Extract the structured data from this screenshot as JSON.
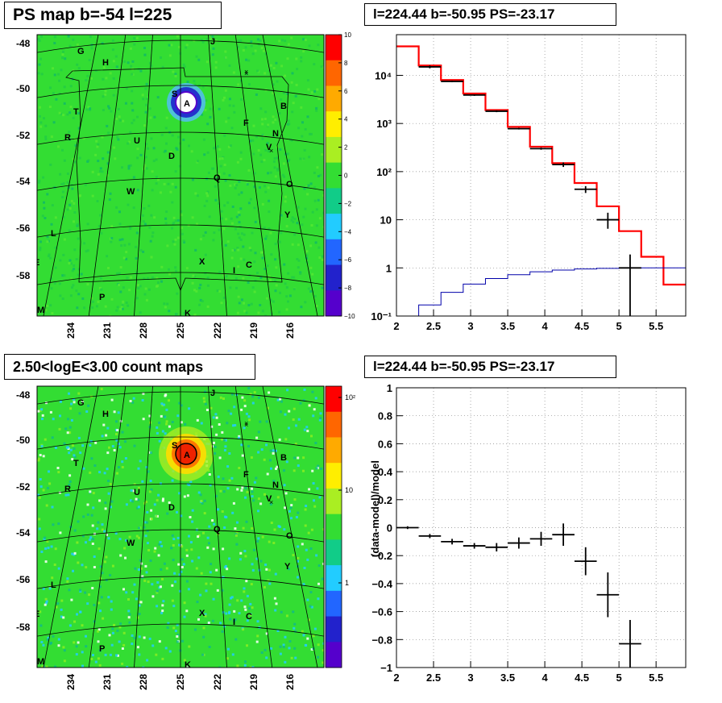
{
  "panels": {
    "top_left_title": "PS map b=-54 l=225",
    "top_right_title": "l=224.44 b=-50.95 PS=-23.17",
    "bottom_left_title": "2.50<logE<3.00 count maps",
    "bottom_right_title": "l=224.44 b=-50.95 PS=-23.17"
  },
  "sky_map": {
    "lat_labels": [
      "-48",
      "-50",
      "-52",
      "-54",
      "-56",
      "-58"
    ],
    "lon_labels": [
      "234",
      "231",
      "228",
      "225",
      "222",
      "219",
      "216"
    ],
    "sources": [
      "G",
      "H",
      "J",
      "S",
      "A",
      "B",
      "T",
      "F",
      "N",
      "R",
      "U",
      "V",
      "D",
      "Q",
      "W",
      "O",
      "Y",
      "L",
      "E",
      "X",
      "I",
      "C",
      "P",
      "M",
      "K"
    ],
    "ps_colorbar": {
      "ticks": [
        "10",
        "8",
        "6",
        "4",
        "2",
        "0",
        "−2",
        "−4",
        "−6",
        "−8",
        "−10"
      ],
      "range": [
        -10,
        10
      ]
    },
    "count_colorbar": {
      "ticks": [
        "10²",
        "10",
        "1"
      ],
      "scale": "log"
    },
    "colors": {
      "green": "#33dd33",
      "highlight_red": "#ee2200",
      "deficit_blue": "#2233cc"
    }
  },
  "chart_data": [
    {
      "type": "line",
      "panel": "top-right",
      "title": "l=224.44 b=-50.95 PS=-23.17",
      "xlabel": "",
      "ylabel": "",
      "xlim": [
        2,
        5.9
      ],
      "ylim": [
        0.1,
        70000
      ],
      "yscale": "log",
      "grid": true,
      "x_ticks": [
        "2",
        "2.5",
        "3",
        "3.5",
        "4",
        "4.5",
        "5",
        "5.5"
      ],
      "y_ticks": [
        "10⁻¹",
        "1",
        "10",
        "10²",
        "10³",
        "10⁴"
      ],
      "series": [
        {
          "style": "histogram",
          "color": "#ff0000",
          "edges": [
            2.0,
            2.3,
            2.6,
            2.9,
            3.2,
            3.5,
            3.8,
            4.1,
            4.4,
            4.7,
            5.0,
            5.3,
            5.6,
            5.9
          ],
          "values": [
            40000,
            16000,
            8000,
            4200,
            1900,
            850,
            330,
            150,
            58,
            19,
            5.8,
            1.7,
            0.45
          ]
        },
        {
          "style": "histogram",
          "color": "#0000aa",
          "edges": [
            2.0,
            2.3,
            2.6,
            2.9,
            3.2,
            3.5,
            3.8,
            4.1,
            4.4,
            4.7,
            5.0,
            5.3,
            5.6,
            5.9
          ],
          "values": [
            0.1,
            0.17,
            0.31,
            0.46,
            0.6,
            0.72,
            0.83,
            0.9,
            0.95,
            0.98,
            0.99,
            1.0,
            1.0
          ]
        },
        {
          "style": "errorbars",
          "color": "#000000",
          "x": [
            2.45,
            2.75,
            3.05,
            3.35,
            3.65,
            3.95,
            4.25,
            4.55,
            4.85,
            5.15
          ],
          "x_err": 0.15,
          "y": [
            15000,
            7500,
            3900,
            1800,
            780,
            300,
            140,
            43,
            10,
            1
          ],
          "y_low": [
            14000,
            7200,
            3750,
            1720,
            750,
            285,
            125,
            36,
            6.5,
            0.1
          ],
          "y_high": [
            16000,
            7800,
            4050,
            1880,
            810,
            315,
            155,
            50,
            14,
            1.9
          ]
        }
      ]
    },
    {
      "type": "scatter",
      "panel": "bottom-right",
      "title": "l=224.44 b=-50.95 PS=-23.17",
      "xlabel": "",
      "ylabel": "(data-model)/model",
      "xlim": [
        2,
        5.9
      ],
      "ylim": [
        -1,
        1
      ],
      "grid": true,
      "x_ticks": [
        "2",
        "2.5",
        "3",
        "3.5",
        "4",
        "4.5",
        "5",
        "5.5"
      ],
      "y_ticks": [
        "−1",
        "−0.8",
        "−0.6",
        "−0.4",
        "−0.2",
        "0",
        "0.2",
        "0.4",
        "0.6",
        "0.8",
        "1"
      ],
      "series": [
        {
          "style": "errorbars",
          "color": "#000000",
          "x": [
            2.15,
            2.45,
            2.75,
            3.05,
            3.35,
            3.65,
            3.95,
            4.25,
            4.55,
            4.85,
            5.15
          ],
          "x_err": 0.15,
          "y": [
            0.0,
            -0.06,
            -0.1,
            -0.13,
            -0.14,
            -0.11,
            -0.08,
            -0.05,
            -0.24,
            -0.48,
            -0.83
          ],
          "y_err": [
            0.01,
            0.015,
            0.02,
            0.02,
            0.03,
            0.04,
            0.05,
            0.08,
            0.1,
            0.16,
            0.17
          ]
        }
      ]
    }
  ]
}
